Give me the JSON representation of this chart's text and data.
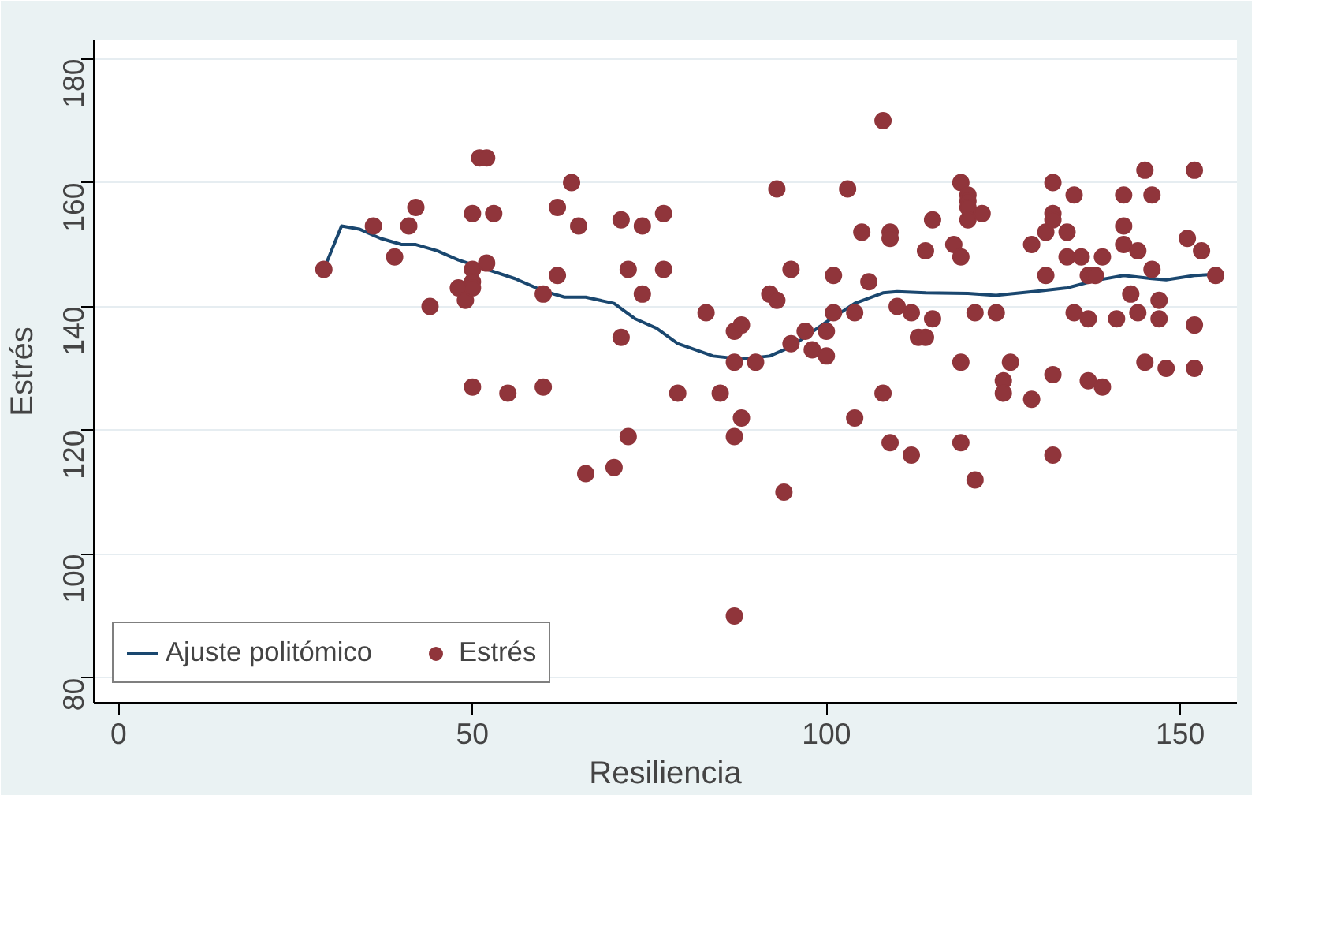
{
  "chart_data": {
    "type": "scatter",
    "xlabel": "Resiliencia",
    "ylabel": "Estrés",
    "xlim": [
      -3.5,
      158
    ],
    "ylim": [
      76,
      183
    ],
    "xticks": [
      0,
      50,
      100,
      150
    ],
    "yticks": [
      80,
      100,
      120,
      140,
      160,
      180
    ],
    "grid": "y",
    "legend": "bottom left",
    "series": [
      {
        "name": "Ajuste politómico",
        "type": "line",
        "color": "#1a476f",
        "line_style": "solid",
        "x": [
          29,
          31.5,
          34,
          37,
          40,
          42,
          45,
          48,
          52,
          56,
          60,
          63,
          66,
          70,
          73,
          76,
          79,
          84,
          88,
          92,
          95,
          100,
          104,
          108,
          110,
          114,
          120,
          124,
          130,
          134,
          138,
          142,
          146,
          148,
          152,
          155
        ],
        "values": [
          146,
          153,
          152.5,
          151,
          150,
          150,
          149,
          147.5,
          146,
          144.5,
          142.5,
          141.5,
          141.5,
          140.5,
          138,
          136.5,
          134,
          132,
          131.5,
          132,
          133.5,
          137.5,
          140.5,
          142.2,
          142.4,
          142.2,
          142.1,
          141.8,
          142.5,
          143,
          144.2,
          145,
          144.5,
          144.3,
          145,
          145.2
        ]
      },
      {
        "name": "Estrés",
        "marker": "circle",
        "color": "#90353b",
        "x": [
          29,
          36,
          39,
          41,
          42,
          44,
          48,
          49,
          50,
          50,
          50,
          50,
          50,
          51,
          52,
          52,
          53,
          55,
          60,
          60,
          62,
          62,
          64,
          65,
          66,
          70,
          71,
          71,
          72,
          72,
          74,
          74,
          77,
          77,
          79,
          83,
          85,
          87,
          87,
          87,
          87,
          88,
          88,
          90,
          92,
          93,
          93,
          94,
          95,
          95,
          97,
          98,
          100,
          100,
          101,
          101,
          103,
          104,
          104,
          105,
          106,
          108,
          108,
          109,
          109,
          109,
          110,
          112,
          112,
          113,
          114,
          114,
          115,
          115,
          118,
          119,
          119,
          119,
          119,
          120,
          120,
          120,
          120,
          121,
          121,
          122,
          124,
          125,
          125,
          126,
          129,
          129,
          131,
          131,
          132,
          132,
          132,
          132,
          132,
          134,
          134,
          135,
          135,
          136,
          137,
          137,
          137,
          138,
          139,
          139,
          141,
          142,
          142,
          142,
          143,
          144,
          144,
          145,
          145,
          146,
          146,
          147,
          147,
          148,
          151,
          152,
          152,
          152,
          153,
          155
        ],
        "values": [
          146,
          153,
          148,
          153,
          156,
          140,
          143,
          141,
          155,
          146,
          144,
          143,
          127,
          164,
          164,
          147,
          155,
          126,
          142,
          127,
          156,
          145,
          160,
          153,
          113,
          114,
          154,
          135,
          146,
          119,
          153,
          142,
          155,
          146,
          126,
          139,
          126,
          136,
          131,
          119,
          90,
          137,
          122,
          131,
          142,
          159,
          141,
          110,
          146,
          134,
          136,
          133,
          136,
          132,
          145,
          139,
          159,
          122,
          139,
          152,
          144,
          170,
          126,
          152,
          151,
          118,
          140,
          139,
          116,
          135,
          149,
          135,
          154,
          138,
          150,
          160,
          148,
          131,
          118,
          158,
          157,
          156,
          154,
          139,
          112,
          155,
          139,
          128,
          126,
          131,
          150,
          125,
          152,
          145,
          160,
          155,
          154,
          129,
          116,
          152,
          148,
          158,
          139,
          148,
          145,
          138,
          128,
          145,
          148,
          127,
          138,
          158,
          153,
          150,
          142,
          149,
          139,
          162,
          131,
          158,
          146,
          141,
          138,
          130,
          151,
          162,
          137,
          130,
          149,
          145
        ]
      }
    ]
  }
}
